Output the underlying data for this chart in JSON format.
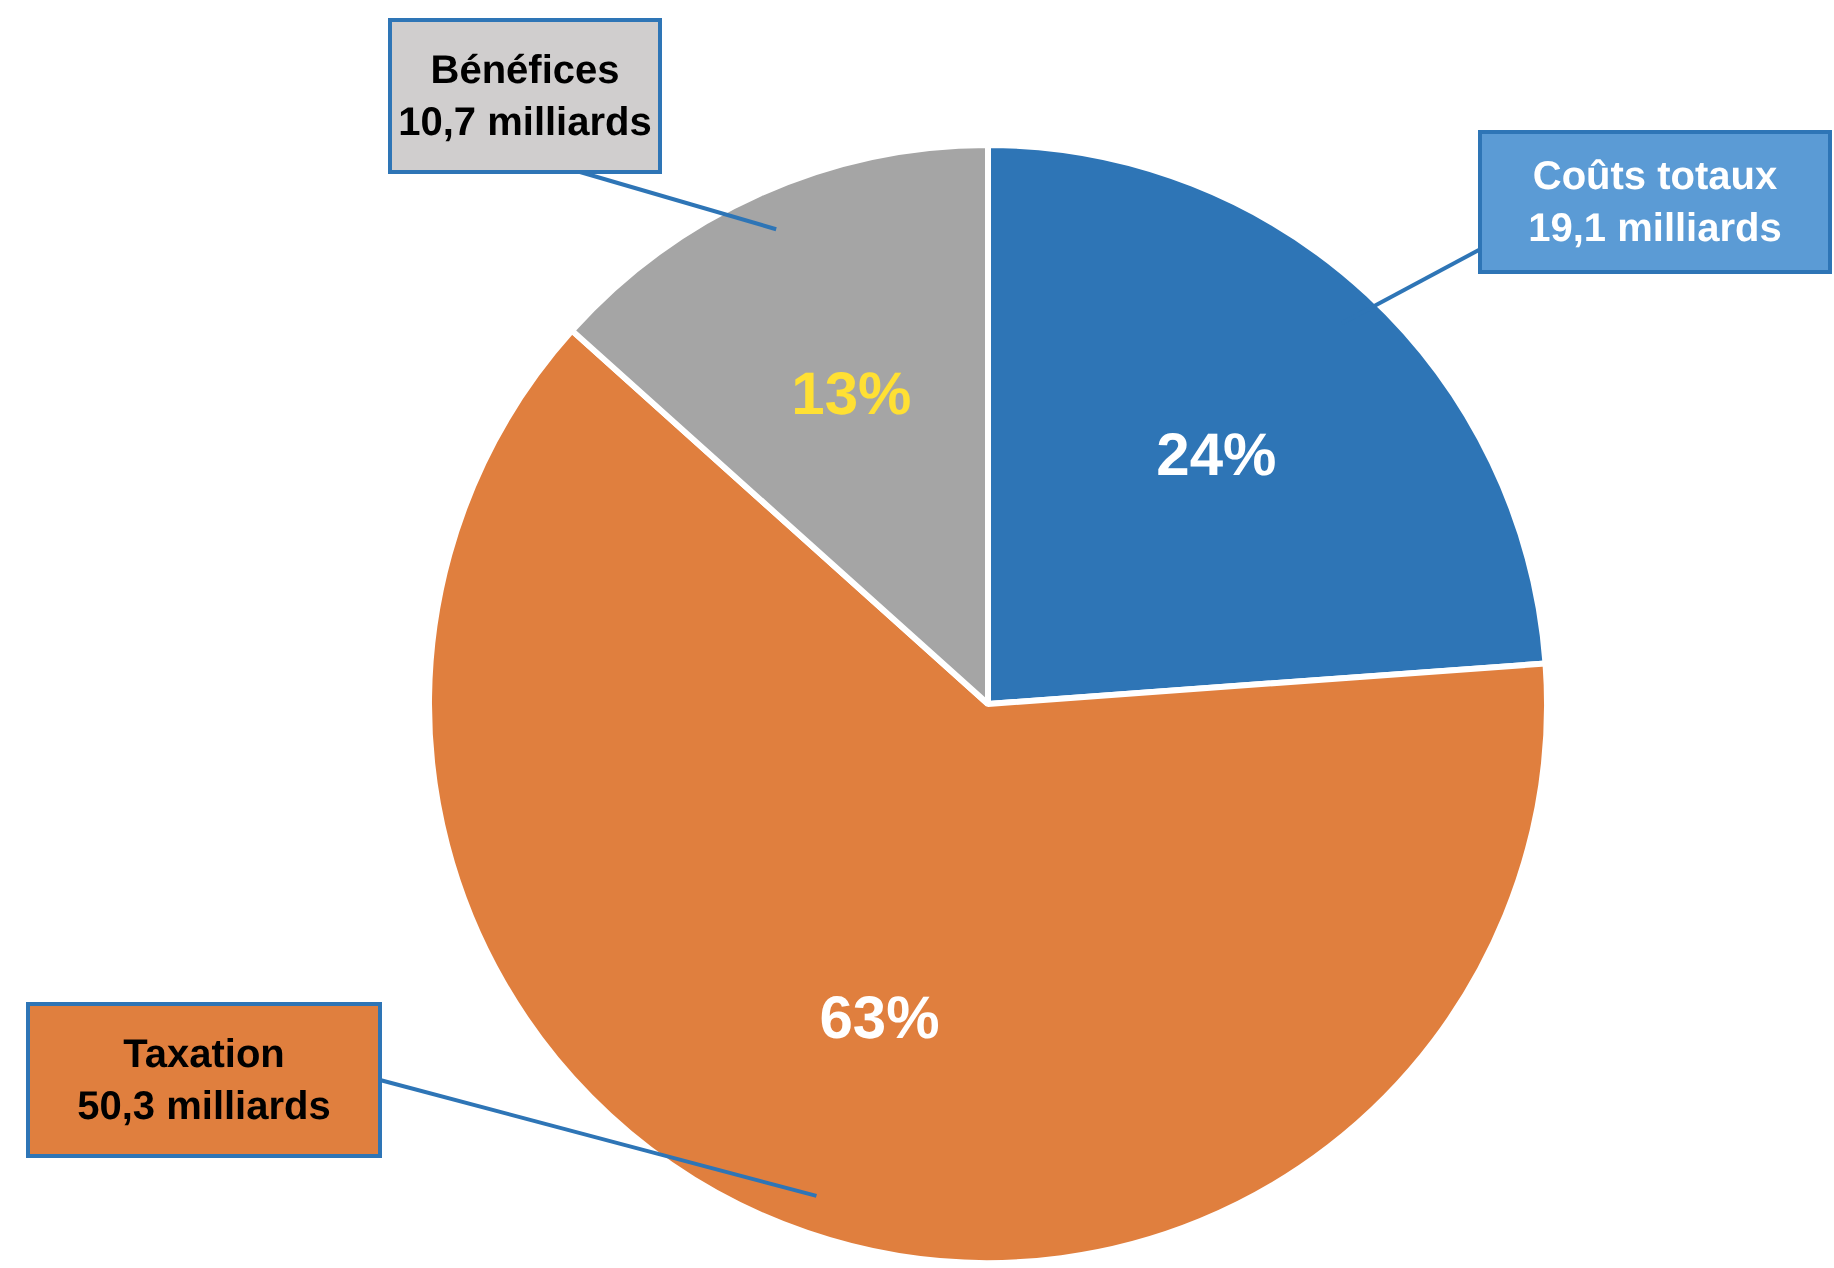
{
  "chart_data": {
    "type": "pie",
    "categories": [
      "Coûts totaux",
      "Taxation",
      "Bénéfices"
    ],
    "values": [
      19.1,
      50.3,
      10.7
    ],
    "value_labels": [
      "19,1 milliards",
      "50,3 milliards",
      "10,7 milliards"
    ],
    "colors": [
      "#2e75b6",
      "#e07f3e",
      "#a5a5a5"
    ],
    "annotations": [
      {
        "text": "24%",
        "x": "Coûts totaux"
      },
      {
        "text": "63%",
        "x": "Taxation"
      },
      {
        "text": "13%",
        "x": "Bénéfices"
      }
    ],
    "legend": false
  }
}
